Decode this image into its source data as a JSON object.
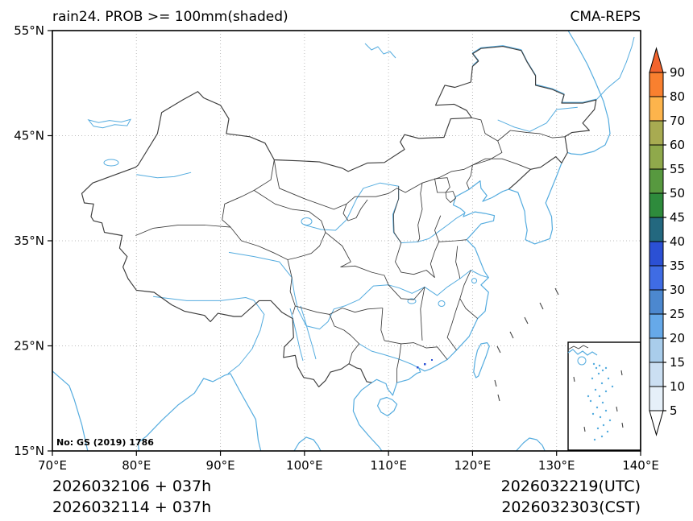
{
  "header": {
    "title": "rain24. PROB >= 100mm(shaded)",
    "model": "CMA-REPS"
  },
  "axes": {
    "x_ticks": [
      {
        "label": "70°E",
        "value": 70
      },
      {
        "label": "80°E",
        "value": 80
      },
      {
        "label": "90°E",
        "value": 90
      },
      {
        "label": "100°E",
        "value": 100
      },
      {
        "label": "110°E",
        "value": 110
      },
      {
        "label": "120°E",
        "value": 120
      },
      {
        "label": "130°E",
        "value": 130
      },
      {
        "label": "140°E",
        "value": 140
      }
    ],
    "y_ticks": [
      {
        "label": "55°N",
        "value": 55
      },
      {
        "label": "45°N",
        "value": 45
      },
      {
        "label": "35°N",
        "value": 35
      },
      {
        "label": "25°N",
        "value": 25
      },
      {
        "label": "15°N",
        "value": 15
      }
    ]
  },
  "colorbar": {
    "labels": [
      "90",
      "80",
      "70",
      "60",
      "55",
      "50",
      "45",
      "40",
      "35",
      "30",
      "25",
      "20",
      "15",
      "10",
      "5"
    ],
    "segments": [
      {
        "range": "80-90",
        "color": "#f9802f"
      },
      {
        "range": "70-80",
        "color": "#fdb44c"
      },
      {
        "range": "60-70",
        "color": "#a8ab51"
      },
      {
        "range": "55-60",
        "color": "#8fa94b"
      },
      {
        "range": "50-55",
        "color": "#57993f"
      },
      {
        "range": "45-50",
        "color": "#2e8b3c"
      },
      {
        "range": "40-45",
        "color": "#23687f"
      },
      {
        "range": "35-40",
        "color": "#2b50d4"
      },
      {
        "range": "30-35",
        "color": "#3f6ce4"
      },
      {
        "range": "25-30",
        "color": "#4c88cf"
      },
      {
        "range": "20-25",
        "color": "#66a9e9"
      },
      {
        "range": "15-20",
        "color": "#a9cdeb"
      },
      {
        "range": "10-15",
        "color": "#cbdff2"
      },
      {
        "range": "5-10",
        "color": "#e6f0f9"
      }
    ],
    "over_color": "#f2642d",
    "under_color": "#ffffff"
  },
  "footer": {
    "init_utc": "2026032106 + 037h",
    "init_cst": "2026032114 + 037h",
    "valid_utc": "2026032219(UTC)",
    "valid_cst": "2026032303(CST)"
  },
  "map": {
    "license_label": "No: GS (2019) 1786"
  },
  "colors": {
    "boundary": "#3c3c3c",
    "coastline": "#55acdf",
    "grid": "#bcbcbc",
    "frame": "#000000",
    "speck": "#2b50d4"
  }
}
